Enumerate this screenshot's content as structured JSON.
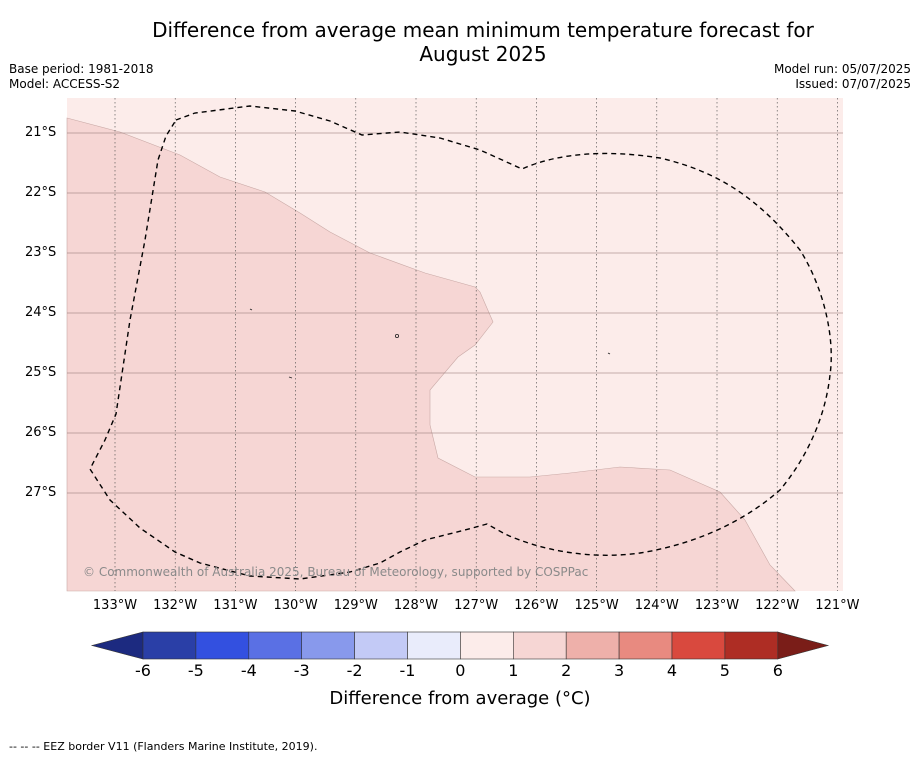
{
  "title_line1": "Difference from average mean minimum temperature forecast for",
  "title_line2": "August 2025",
  "base_period": "Base period: 1981-2018",
  "model": "Model: ACCESS-S2",
  "model_run": "Model run: 05/07/2025",
  "issued": "Issued: 07/07/2025",
  "copyright": "© Commonwealth of Australia 2025, Bureau of Meteorology, supported by COSPPac",
  "lat_labels": [
    "21°S",
    "22°S",
    "23°S",
    "24°S",
    "25°S",
    "26°S",
    "27°S"
  ],
  "lon_labels": [
    "133°W",
    "132°W",
    "131°W",
    "130°W",
    "129°W",
    "128°W",
    "127°W",
    "126°W",
    "125°W",
    "124°W",
    "123°W",
    "122°W",
    "121°W"
  ],
  "colorbar": {
    "ticks": [
      "-6",
      "-5",
      "-4",
      "-3",
      "-2",
      "-1",
      "0",
      "1",
      "2",
      "3",
      "4",
      "5",
      "6"
    ],
    "colors": [
      "#2a3fa7",
      "#3350e0",
      "#5a70e4",
      "#8899ec",
      "#c3caf6",
      "#e9ecfb",
      "#fcecea",
      "#f6d6d4",
      "#eeb0aa",
      "#e88a80",
      "#d9493e",
      "#ae2d24"
    ],
    "under_color": "#1c2a80",
    "over_color": "#7a1d18",
    "label": "Difference from average (°C)"
  },
  "map_colors": {
    "band_0_1": "#fcecea",
    "band_1_2": "#f6d6d4"
  },
  "footer": "--  --  -- EEZ border V11 (Flanders Marine Institute, 2019)."
}
